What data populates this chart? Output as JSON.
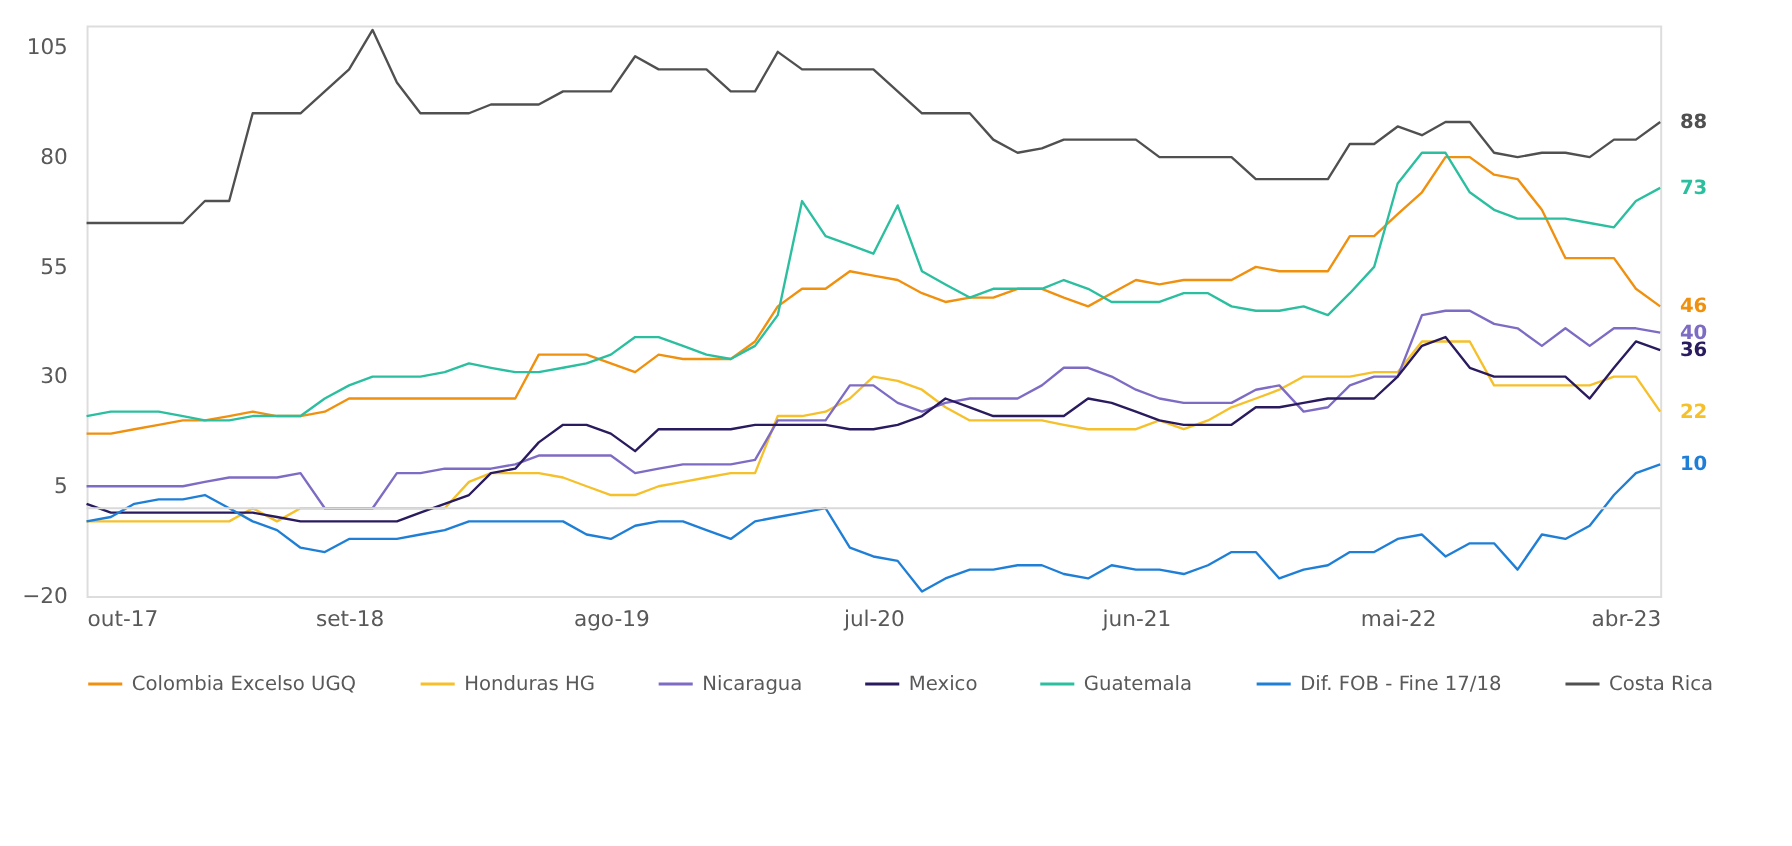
{
  "chart_data": {
    "type": "line",
    "legend": "bottom",
    "grid": false,
    "x": [
      "2017-10",
      "2017-11",
      "2017-12",
      "2018-01",
      "2018-02",
      "2018-03",
      "2018-04",
      "2018-05",
      "2018-06",
      "2018-07",
      "2018-08",
      "2018-09",
      "2018-10",
      "2018-11",
      "2018-12",
      "2019-01",
      "2019-02",
      "2019-03",
      "2019-04",
      "2019-05",
      "2019-06",
      "2019-07",
      "2019-08",
      "2019-09",
      "2019-10",
      "2019-11",
      "2019-12",
      "2020-01",
      "2020-02",
      "2020-03",
      "2020-04",
      "2020-05",
      "2020-06",
      "2020-07",
      "2020-08",
      "2020-09",
      "2020-10",
      "2020-11",
      "2020-12",
      "2021-01",
      "2021-02",
      "2021-03",
      "2021-04",
      "2021-05",
      "2021-06",
      "2021-07",
      "2021-08",
      "2021-09",
      "2021-10",
      "2021-11",
      "2021-12",
      "2022-01",
      "2022-02",
      "2022-03",
      "2022-04",
      "2022-05",
      "2022-06",
      "2022-07",
      "2022-08",
      "2022-09",
      "2022-10",
      "2022-11",
      "2022-12",
      "2023-01",
      "2023-02",
      "2023-03",
      "2023-04"
    ],
    "xlim": [
      "2017-10",
      "2023-04"
    ],
    "xticks": [
      {
        "value": "2017-10",
        "label": "out-17"
      },
      {
        "value": "2018-09",
        "label": "set-18"
      },
      {
        "value": "2019-08",
        "label": "ago-19"
      },
      {
        "value": "2020-07",
        "label": "jul-20"
      },
      {
        "value": "2021-06",
        "label": "jun-21"
      },
      {
        "value": "2022-05",
        "label": "mai-22"
      },
      {
        "value": "2023-04",
        "label": "abr-23"
      }
    ],
    "ylim": [
      -20,
      110
    ],
    "yticks": [
      -20,
      5,
      30,
      55,
      80,
      105
    ],
    "ref_lines": [
      {
        "axis": "y",
        "value": 0,
        "label": null,
        "color": "#d9d9d9"
      }
    ],
    "series": [
      {
        "name": "Colombia Excelso UGQ",
        "color": "#f0900f",
        "values": [
          17,
          17,
          18,
          19,
          20,
          20,
          21,
          22,
          21,
          21,
          22,
          25,
          25,
          25,
          25,
          25,
          25,
          25,
          25,
          35,
          35,
          35,
          33,
          31,
          35,
          34,
          34,
          34,
          38,
          46,
          50,
          50,
          54,
          53,
          52,
          49,
          47,
          48,
          48,
          50,
          50,
          48,
          46,
          49,
          52,
          51,
          52,
          52,
          52,
          55,
          54,
          54,
          54,
          62,
          62,
          67,
          72,
          80,
          80,
          76,
          75,
          68,
          57,
          57,
          57,
          50,
          46
        ],
        "value_labels": [
          null,
          null,
          null,
          null,
          null,
          null,
          null,
          null,
          null,
          null,
          null,
          null,
          null,
          null,
          null,
          null,
          null,
          null,
          null,
          null,
          null,
          null,
          null,
          null,
          null,
          null,
          null,
          null,
          null,
          null,
          null,
          null,
          null,
          null,
          null,
          null,
          null,
          null,
          null,
          null,
          null,
          null,
          null,
          null,
          null,
          null,
          null,
          null,
          null,
          null,
          null,
          null,
          null,
          null,
          null,
          null,
          null,
          null,
          null,
          null,
          null,
          null,
          null,
          null,
          null,
          null,
          "46"
        ]
      },
      {
        "name": "Honduras HG",
        "color": "#f5c02a",
        "values": [
          -3,
          -3,
          -3,
          -3,
          -3,
          -3,
          -3,
          0,
          -3,
          0,
          0,
          0,
          0,
          0,
          0,
          0,
          6,
          8,
          8,
          8,
          7,
          5,
          3,
          3,
          5,
          6,
          7,
          8,
          8,
          21,
          21,
          22,
          25,
          30,
          29,
          27,
          23,
          20,
          20,
          20,
          20,
          19,
          18,
          18,
          18,
          20,
          18,
          20,
          23,
          25,
          27,
          30,
          30,
          30,
          31,
          31,
          38,
          38,
          38,
          28,
          28,
          28,
          28,
          28,
          30,
          30,
          22
        ],
        "value_labels": [
          null,
          null,
          null,
          null,
          null,
          null,
          null,
          null,
          null,
          null,
          null,
          null,
          null,
          null,
          null,
          null,
          null,
          null,
          null,
          null,
          null,
          null,
          null,
          null,
          null,
          null,
          null,
          null,
          null,
          null,
          null,
          null,
          null,
          null,
          null,
          null,
          null,
          null,
          null,
          null,
          null,
          null,
          null,
          null,
          null,
          null,
          null,
          null,
          null,
          null,
          null,
          null,
          null,
          null,
          null,
          null,
          null,
          null,
          null,
          null,
          null,
          null,
          null,
          null,
          null,
          null,
          "22"
        ]
      },
      {
        "name": "Nicaragua",
        "color": "#7e6bc4",
        "values": [
          5,
          5,
          5,
          5,
          5,
          6,
          7,
          7,
          7,
          8,
          0,
          0,
          0,
          8,
          8,
          9,
          9,
          9,
          10,
          12,
          12,
          12,
          12,
          8,
          9,
          10,
          10,
          10,
          11,
          20,
          20,
          20,
          28,
          28,
          24,
          22,
          24,
          25,
          25,
          25,
          28,
          32,
          32,
          30,
          27,
          25,
          24,
          24,
          24,
          27,
          28,
          22,
          23,
          28,
          30,
          30,
          44,
          45,
          45,
          42,
          41,
          37,
          41,
          37,
          41,
          41,
          40
        ],
        "value_labels": [
          null,
          null,
          null,
          null,
          null,
          null,
          null,
          null,
          null,
          null,
          null,
          null,
          null,
          null,
          null,
          null,
          null,
          null,
          null,
          null,
          null,
          null,
          null,
          null,
          null,
          null,
          null,
          null,
          null,
          null,
          null,
          null,
          null,
          null,
          null,
          null,
          null,
          null,
          null,
          null,
          null,
          null,
          null,
          null,
          null,
          null,
          null,
          null,
          null,
          null,
          null,
          null,
          null,
          null,
          null,
          null,
          null,
          null,
          null,
          null,
          null,
          null,
          null,
          null,
          null,
          null,
          "40"
        ]
      },
      {
        "name": "Mexico",
        "color": "#2a1a5e",
        "values": [
          1,
          -1,
          -1,
          -1,
          -1,
          -1,
          -1,
          -1,
          -2,
          -3,
          -3,
          -3,
          -3,
          -3,
          -1,
          1,
          3,
          8,
          9,
          15,
          19,
          19,
          17,
          13,
          18,
          18,
          18,
          18,
          19,
          19,
          19,
          19,
          18,
          18,
          19,
          21,
          25,
          23,
          21,
          21,
          21,
          21,
          25,
          24,
          22,
          20,
          19,
          19,
          19,
          23,
          23,
          24,
          25,
          25,
          25,
          30,
          37,
          39,
          32,
          30,
          30,
          30,
          30,
          25,
          32,
          38,
          36
        ],
        "value_labels": [
          null,
          null,
          null,
          null,
          null,
          null,
          null,
          null,
          null,
          null,
          null,
          null,
          null,
          null,
          null,
          null,
          null,
          null,
          null,
          null,
          null,
          null,
          null,
          null,
          null,
          null,
          null,
          null,
          null,
          null,
          null,
          null,
          null,
          null,
          null,
          null,
          null,
          null,
          null,
          null,
          null,
          null,
          null,
          null,
          null,
          null,
          null,
          null,
          null,
          null,
          null,
          null,
          null,
          null,
          null,
          null,
          null,
          null,
          null,
          null,
          null,
          null,
          null,
          null,
          null,
          null,
          "36"
        ]
      },
      {
        "name": "Guatemala",
        "color": "#2bbf9f",
        "values": [
          21,
          22,
          22,
          22,
          21,
          20,
          20,
          21,
          21,
          21,
          25,
          28,
          30,
          30,
          30,
          31,
          33,
          32,
          31,
          31,
          32,
          33,
          35,
          39,
          39,
          37,
          35,
          34,
          37,
          44,
          70,
          62,
          60,
          58,
          69,
          54,
          51,
          48,
          50,
          50,
          50,
          52,
          50,
          47,
          47,
          47,
          49,
          49,
          46,
          45,
          45,
          46,
          44,
          49,
          55,
          74,
          81,
          81,
          72,
          68,
          66,
          66,
          66,
          65,
          64,
          70,
          73
        ],
        "value_labels": [
          null,
          null,
          null,
          null,
          null,
          null,
          null,
          null,
          null,
          null,
          null,
          null,
          null,
          null,
          null,
          null,
          null,
          null,
          null,
          null,
          null,
          null,
          null,
          null,
          null,
          null,
          null,
          null,
          null,
          null,
          null,
          null,
          null,
          null,
          null,
          null,
          null,
          null,
          null,
          null,
          null,
          null,
          null,
          null,
          null,
          null,
          null,
          null,
          null,
          null,
          null,
          null,
          null,
          null,
          null,
          null,
          null,
          null,
          null,
          null,
          null,
          null,
          null,
          null,
          null,
          null,
          "73"
        ]
      },
      {
        "name": "Dif. FOB - Fine 17/18",
        "color": "#1f7fd6",
        "values": [
          -3,
          -2,
          1,
          2,
          2,
          3,
          0,
          -3,
          -5,
          -9,
          -10,
          -7,
          -7,
          -7,
          -6,
          -5,
          -3,
          -3,
          -3,
          -3,
          -3,
          -6,
          -7,
          -4,
          -3,
          -3,
          -5,
          -7,
          -3,
          -2,
          -1,
          0,
          -9,
          -11,
          -12,
          -19,
          -16,
          -14,
          -14,
          -13,
          -13,
          -15,
          -16,
          -13,
          -14,
          -14,
          -15,
          -13,
          -10,
          -10,
          -16,
          -14,
          -13,
          -10,
          -10,
          -7,
          -6,
          -11,
          -8,
          -8,
          -14,
          -6,
          -7,
          -4,
          3,
          8,
          10
        ],
        "value_labels": [
          null,
          null,
          null,
          null,
          null,
          null,
          null,
          null,
          null,
          null,
          null,
          null,
          null,
          null,
          null,
          null,
          null,
          null,
          null,
          null,
          null,
          null,
          null,
          null,
          null,
          null,
          null,
          null,
          null,
          null,
          null,
          null,
          null,
          null,
          null,
          null,
          null,
          null,
          null,
          null,
          null,
          null,
          null,
          null,
          null,
          null,
          null,
          null,
          null,
          null,
          null,
          null,
          null,
          null,
          null,
          null,
          null,
          null,
          null,
          null,
          null,
          null,
          null,
          null,
          null,
          null,
          "10"
        ]
      },
      {
        "name": "Costa Rica",
        "color": "#505050",
        "values": [
          65,
          65,
          65,
          65,
          65,
          70,
          70,
          90,
          90,
          90,
          95,
          100,
          109,
          97,
          90,
          90,
          90,
          92,
          92,
          92,
          95,
          95,
          95,
          103,
          100,
          100,
          100,
          95,
          95,
          104,
          100,
          100,
          100,
          100,
          95,
          90,
          90,
          90,
          84,
          81,
          82,
          84,
          84,
          84,
          84,
          80,
          80,
          80,
          80,
          75,
          75,
          75,
          75,
          83,
          83,
          87,
          85,
          88,
          88,
          81,
          80,
          81,
          81,
          80,
          84,
          84,
          88
        ],
        "value_labels": [
          null,
          null,
          null,
          null,
          null,
          null,
          null,
          null,
          null,
          null,
          null,
          null,
          null,
          null,
          null,
          null,
          null,
          null,
          null,
          null,
          null,
          null,
          null,
          null,
          null,
          null,
          null,
          null,
          null,
          null,
          null,
          null,
          null,
          null,
          null,
          null,
          null,
          null,
          null,
          null,
          null,
          null,
          null,
          null,
          null,
          null,
          null,
          null,
          null,
          null,
          null,
          null,
          null,
          null,
          null,
          null,
          null,
          null,
          null,
          null,
          null,
          null,
          null,
          null,
          null,
          null,
          "88"
        ]
      }
    ]
  }
}
